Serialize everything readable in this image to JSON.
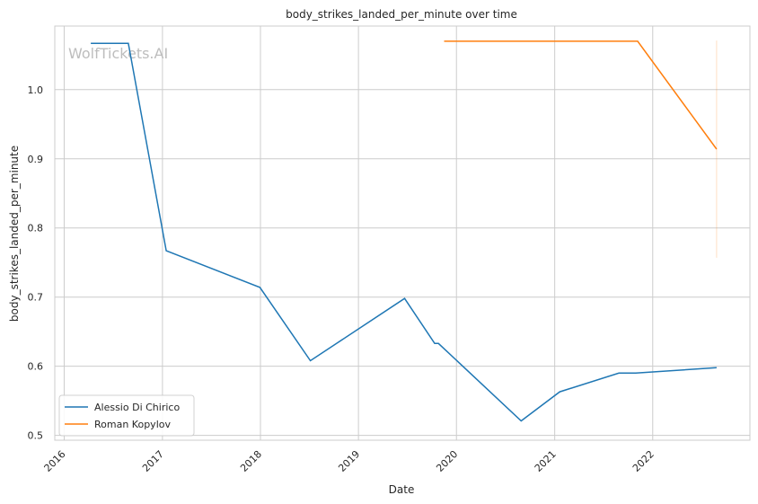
{
  "chart_data": {
    "type": "line",
    "title": "body_strikes_landed_per_minute over time",
    "xlabel": "Date",
    "ylabel": "body_strikes_landed_per_minute",
    "watermark": "WolfTickets.AI",
    "xlim": [
      "2015-11-27",
      "2022-12-29"
    ],
    "ylim": [
      0.493,
      1.092
    ],
    "grid": true,
    "legend_position": "lower-left",
    "x_ticks": [
      {
        "date": "2016-01-01",
        "label": "2016"
      },
      {
        "date": "2017-01-01",
        "label": "2017"
      },
      {
        "date": "2018-01-01",
        "label": "2018"
      },
      {
        "date": "2019-01-01",
        "label": "2019"
      },
      {
        "date": "2020-01-01",
        "label": "2020"
      },
      {
        "date": "2021-01-01",
        "label": "2021"
      },
      {
        "date": "2022-01-01",
        "label": "2022"
      }
    ],
    "y_ticks": [
      {
        "value": 0.5,
        "label": "0.5"
      },
      {
        "value": 0.6,
        "label": "0.6"
      },
      {
        "value": 0.7,
        "label": "0.7"
      },
      {
        "value": 0.8,
        "label": "0.8"
      },
      {
        "value": 0.9,
        "label": "0.9"
      },
      {
        "value": 1.0,
        "label": "1.0"
      }
    ],
    "series": [
      {
        "name": "Alessio Di Chirico",
        "color": "#1f77b4",
        "x": [
          "2016-04-09",
          "2016-08-27",
          "2017-01-15",
          "2017-12-30",
          "2018-07-06",
          "2019-06-22",
          "2019-10-12",
          "2019-10-26",
          "2020-08-29",
          "2021-01-20",
          "2021-08-28",
          "2021-10-30",
          "2022-08-27"
        ],
        "y": [
          1.067,
          1.067,
          0.767,
          0.714,
          0.608,
          0.698,
          0.633,
          0.633,
          0.521,
          0.563,
          0.59,
          0.59,
          0.598
        ]
      },
      {
        "name": "Roman Kopylov",
        "color": "#ff7f0e",
        "x": [
          "2019-11-16",
          "2021-11-06",
          "2022-08-27"
        ],
        "y": [
          1.07,
          1.07,
          0.914
        ]
      }
    ],
    "range_band": {
      "color": "#ff7f0e",
      "x": "2022-08-27",
      "y_low": 0.757,
      "y_high": 1.071
    }
  }
}
